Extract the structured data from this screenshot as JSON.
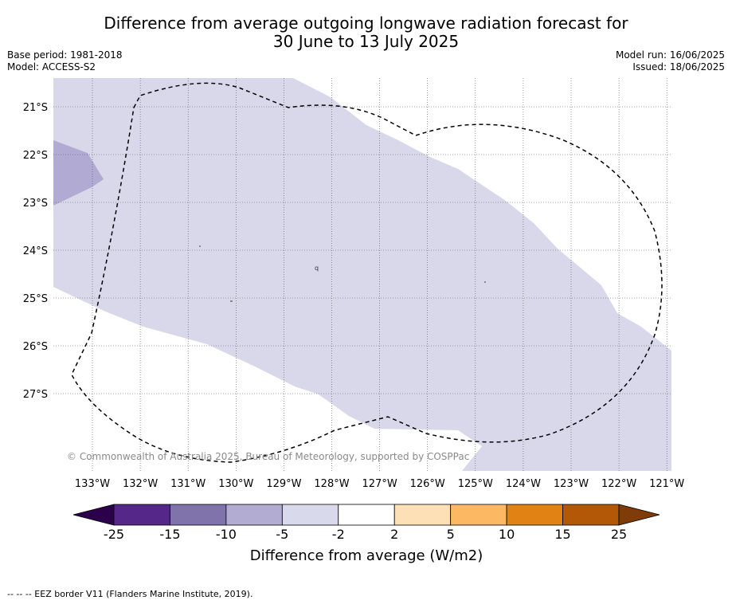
{
  "title": {
    "line1": "Difference from average outgoing longwave radiation forecast for",
    "line2": "30 June to 13 July 2025"
  },
  "meta_left": {
    "base_period": "Base period: 1981-2018",
    "model": "Model: ACCESS-S2"
  },
  "meta_right": {
    "model_run": "Model run: 16/06/2025",
    "issued": "Issued: 18/06/2025"
  },
  "map": {
    "lon_labels": [
      "133°W",
      "132°W",
      "131°W",
      "130°W",
      "129°W",
      "128°W",
      "127°W",
      "126°W",
      "125°W",
      "124°W",
      "123°W",
      "122°W",
      "121°W"
    ],
    "lat_labels": [
      "21°S",
      "22°S",
      "23°S",
      "24°S",
      "25°S",
      "26°S",
      "27°S"
    ],
    "copyright": "© Commonwealth of Australia 2025, Bureau of Meteorology, supported by COSPPac",
    "colors": {
      "light_purple": "#d8d8ea",
      "mid_purple": "#b1aad2",
      "eez_line": "#000000"
    }
  },
  "colorbar": {
    "ticks": [
      "-25",
      "-15",
      "-10",
      "-5",
      "-2",
      "2",
      "5",
      "10",
      "15",
      "25"
    ],
    "label": "Difference from average (W/m2)",
    "colors": [
      "#2d004b",
      "#542788",
      "#8073ac",
      "#b2abd2",
      "#d8daeb",
      "#ffffff",
      "#fee0b6",
      "#fdb863",
      "#e08214",
      "#b35806",
      "#7f3b08"
    ]
  },
  "footnote": "--  --  -- EEZ border V11 (Flanders Marine Institute, 2019)."
}
